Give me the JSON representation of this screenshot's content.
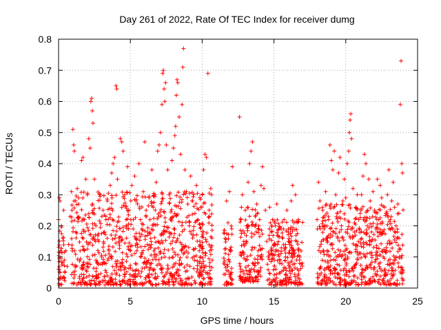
{
  "chart_data": {
    "type": "scatter",
    "title": "Day 261 of 2022, Rate Of TEC Index for receiver dumg",
    "xlabel": "GPS time / hours",
    "ylabel": "ROTI / TECUs",
    "xlim": [
      0,
      25
    ],
    "ylim": [
      0,
      0.8
    ],
    "xticks": [
      0,
      5,
      10,
      15,
      20,
      25
    ],
    "yticks": [
      0,
      0.1,
      0.2,
      0.3,
      0.4,
      0.5,
      0.6,
      0.7,
      0.8
    ],
    "xtick_labels": [
      "0",
      "5",
      "10",
      "15",
      "20",
      "25"
    ],
    "ytick_labels": [
      "0",
      "0.1",
      "0.2",
      "0.3",
      "0.4",
      "0.5",
      "0.6",
      "0.7",
      "0.8"
    ],
    "grid": true,
    "marker": "+",
    "color": "#ff0000",
    "series": [
      {
        "name": "ROTI",
        "points": [
          [
            0.0,
            0.22
          ],
          [
            0.05,
            0.29
          ],
          [
            0.1,
            0.28
          ],
          [
            0.1,
            0.05
          ],
          [
            0.15,
            0.12
          ],
          [
            0.2,
            0.2
          ],
          [
            0.25,
            0.03
          ],
          [
            0.3,
            0.16
          ],
          [
            0.35,
            0.25
          ],
          [
            0.4,
            0.09
          ],
          [
            0.5,
            0.12
          ],
          [
            0.6,
            0.07
          ],
          [
            0.7,
            0.14
          ],
          [
            0.8,
            0.23
          ],
          [
            0.9,
            0.31
          ],
          [
            1.0,
            0.51
          ],
          [
            1.05,
            0.46
          ],
          [
            1.1,
            0.44
          ],
          [
            1.2,
            0.18
          ],
          [
            1.3,
            0.32
          ],
          [
            1.4,
            0.27
          ],
          [
            1.5,
            0.12
          ],
          [
            1.6,
            0.41
          ],
          [
            1.7,
            0.42
          ],
          [
            1.8,
            0.22
          ],
          [
            1.9,
            0.35
          ],
          [
            2.0,
            0.3
          ],
          [
            2.1,
            0.48
          ],
          [
            2.2,
            0.45
          ],
          [
            2.25,
            0.6
          ],
          [
            2.3,
            0.61
          ],
          [
            2.35,
            0.57
          ],
          [
            2.4,
            0.53
          ],
          [
            2.5,
            0.35
          ],
          [
            2.6,
            0.2
          ],
          [
            2.7,
            0.08
          ],
          [
            2.8,
            0.15
          ],
          [
            2.9,
            0.3
          ],
          [
            3.0,
            0.1
          ],
          [
            3.1,
            0.25
          ],
          [
            3.2,
            0.18
          ],
          [
            3.3,
            0.22
          ],
          [
            3.4,
            0.28
          ],
          [
            3.5,
            0.12
          ],
          [
            3.6,
            0.33
          ],
          [
            3.7,
            0.37
          ],
          [
            3.8,
            0.4
          ],
          [
            3.9,
            0.42
          ],
          [
            4.0,
            0.65
          ],
          [
            4.05,
            0.64
          ],
          [
            4.1,
            0.35
          ],
          [
            4.2,
            0.15
          ],
          [
            4.3,
            0.48
          ],
          [
            4.4,
            0.47
          ],
          [
            4.5,
            0.44
          ],
          [
            4.6,
            0.3
          ],
          [
            4.7,
            0.2
          ],
          [
            4.8,
            0.39
          ],
          [
            4.9,
            0.25
          ],
          [
            5.0,
            0.12
          ],
          [
            5.1,
            0.33
          ],
          [
            5.2,
            0.22
          ],
          [
            5.3,
            0.36
          ],
          [
            5.4,
            0.28
          ],
          [
            5.5,
            0.14
          ],
          [
            5.6,
            0.4
          ],
          [
            5.7,
            0.22
          ],
          [
            5.8,
            0.19
          ],
          [
            5.9,
            0.31
          ],
          [
            6.0,
            0.47
          ],
          [
            6.1,
            0.25
          ],
          [
            6.2,
            0.18
          ],
          [
            6.3,
            0.29
          ],
          [
            6.4,
            0.13
          ],
          [
            6.5,
            0.38
          ],
          [
            6.6,
            0.26
          ],
          [
            6.7,
            0.1
          ],
          [
            6.8,
            0.34
          ],
          [
            6.9,
            0.44
          ],
          [
            7.0,
            0.46
          ],
          [
            7.1,
            0.5
          ],
          [
            7.2,
            0.59
          ],
          [
            7.25,
            0.69
          ],
          [
            7.3,
            0.7
          ],
          [
            7.35,
            0.64
          ],
          [
            7.4,
            0.6
          ],
          [
            7.45,
            0.66
          ],
          [
            7.5,
            0.46
          ],
          [
            7.6,
            0.38
          ],
          [
            7.7,
            0.3
          ],
          [
            7.8,
            0.22
          ],
          [
            7.9,
            0.41
          ],
          [
            8.0,
            0.45
          ],
          [
            8.1,
            0.49
          ],
          [
            8.15,
            0.52
          ],
          [
            8.2,
            0.62
          ],
          [
            8.25,
            0.67
          ],
          [
            8.3,
            0.66
          ],
          [
            8.4,
            0.55
          ],
          [
            8.5,
            0.43
          ],
          [
            8.6,
            0.59
          ],
          [
            8.65,
            0.71
          ],
          [
            8.7,
            0.77
          ],
          [
            8.8,
            0.38
          ],
          [
            8.9,
            0.31
          ],
          [
            9.0,
            0.27
          ],
          [
            9.1,
            0.2
          ],
          [
            9.2,
            0.36
          ],
          [
            9.3,
            0.28
          ],
          [
            9.4,
            0.17
          ],
          [
            9.5,
            0.24
          ],
          [
            9.6,
            0.33
          ],
          [
            9.7,
            0.22
          ],
          [
            9.8,
            0.12
          ],
          [
            9.9,
            0.26
          ],
          [
            10.0,
            0.3
          ],
          [
            10.1,
            0.38
          ],
          [
            10.2,
            0.43
          ],
          [
            10.3,
            0.42
          ],
          [
            10.4,
            0.69
          ],
          [
            10.5,
            0.23
          ],
          [
            10.6,
            0.32
          ],
          [
            10.7,
            0.09
          ],
          [
            11.5,
            0.08
          ],
          [
            11.6,
            0.16
          ],
          [
            11.7,
            0.28
          ],
          [
            11.8,
            0.21
          ],
          [
            11.9,
            0.31
          ],
          [
            12.0,
            0.12
          ],
          [
            12.1,
            0.39
          ],
          [
            12.6,
            0.55
          ],
          [
            12.7,
            0.22
          ],
          [
            12.8,
            0.3
          ],
          [
            12.9,
            0.15
          ],
          [
            13.0,
            0.25
          ],
          [
            13.1,
            0.2
          ],
          [
            13.2,
            0.34
          ],
          [
            13.3,
            0.4
          ],
          [
            13.4,
            0.44
          ],
          [
            13.5,
            0.47
          ],
          [
            13.6,
            0.31
          ],
          [
            13.7,
            0.2
          ],
          [
            13.8,
            0.27
          ],
          [
            13.9,
            0.12
          ],
          [
            14.0,
            0.22
          ],
          [
            14.1,
            0.33
          ],
          [
            14.2,
            0.39
          ],
          [
            14.3,
            0.32
          ],
          [
            14.4,
            0.25
          ],
          [
            14.5,
            0.15
          ],
          [
            14.6,
            0.1
          ],
          [
            14.7,
            0.26
          ],
          [
            14.8,
            0.18
          ],
          [
            14.9,
            0.22
          ],
          [
            15.0,
            0.14
          ],
          [
            15.1,
            0.2
          ],
          [
            15.2,
            0.27
          ],
          [
            15.3,
            0.12
          ],
          [
            15.4,
            0.08
          ],
          [
            15.5,
            0.19
          ],
          [
            15.6,
            0.16
          ],
          [
            15.7,
            0.22
          ],
          [
            15.8,
            0.1
          ],
          [
            15.9,
            0.25
          ],
          [
            16.0,
            0.18
          ],
          [
            16.1,
            0.12
          ],
          [
            16.2,
            0.28
          ],
          [
            16.3,
            0.33
          ],
          [
            16.4,
            0.21
          ],
          [
            16.5,
            0.3
          ],
          [
            16.6,
            0.15
          ],
          [
            16.7,
            0.22
          ],
          [
            16.8,
            0.1
          ],
          [
            18.0,
            0.22
          ],
          [
            18.1,
            0.34
          ],
          [
            18.2,
            0.28
          ],
          [
            18.3,
            0.15
          ],
          [
            18.4,
            0.25
          ],
          [
            18.5,
            0.19
          ],
          [
            18.6,
            0.31
          ],
          [
            18.7,
            0.12
          ],
          [
            18.8,
            0.22
          ],
          [
            18.9,
            0.46
          ],
          [
            19.0,
            0.41
          ],
          [
            19.1,
            0.38
          ],
          [
            19.2,
            0.44
          ],
          [
            19.3,
            0.3
          ],
          [
            19.4,
            0.24
          ],
          [
            19.5,
            0.37
          ],
          [
            19.6,
            0.42
          ],
          [
            19.7,
            0.2
          ],
          [
            19.8,
            0.28
          ],
          [
            19.9,
            0.35
          ],
          [
            20.0,
            0.29
          ],
          [
            20.1,
            0.4
          ],
          [
            20.2,
            0.44
          ],
          [
            20.25,
            0.5
          ],
          [
            20.3,
            0.54
          ],
          [
            20.35,
            0.56
          ],
          [
            20.4,
            0.48
          ],
          [
            20.5,
            0.32
          ],
          [
            20.6,
            0.18
          ],
          [
            20.7,
            0.26
          ],
          [
            20.8,
            0.3
          ],
          [
            20.9,
            0.22
          ],
          [
            21.0,
            0.24
          ],
          [
            21.1,
            0.3
          ],
          [
            21.2,
            0.36
          ],
          [
            21.3,
            0.43
          ],
          [
            21.4,
            0.4
          ],
          [
            21.5,
            0.2
          ],
          [
            21.6,
            0.35
          ],
          [
            21.7,
            0.28
          ],
          [
            21.8,
            0.15
          ],
          [
            21.9,
            0.31
          ],
          [
            22.0,
            0.25
          ],
          [
            22.1,
            0.19
          ],
          [
            22.2,
            0.35
          ],
          [
            22.3,
            0.22
          ],
          [
            22.4,
            0.33
          ],
          [
            22.5,
            0.29
          ],
          [
            22.6,
            0.18
          ],
          [
            22.7,
            0.26
          ],
          [
            22.8,
            0.24
          ],
          [
            22.9,
            0.3
          ],
          [
            23.0,
            0.38
          ],
          [
            23.1,
            0.22
          ],
          [
            23.2,
            0.28
          ],
          [
            23.3,
            0.34
          ],
          [
            23.4,
            0.26
          ],
          [
            23.5,
            0.2
          ],
          [
            23.6,
            0.18
          ],
          [
            23.7,
            0.24
          ],
          [
            23.8,
            0.59
          ],
          [
            23.85,
            0.73
          ],
          [
            23.9,
            0.4
          ],
          [
            23.95,
            0.37
          ]
        ],
        "dense_segments": [
          [
            0.0,
            0.45,
            0.01,
            0.22
          ],
          [
            0.9,
            10.7,
            0.01,
            0.31
          ],
          [
            11.5,
            12.1,
            0.01,
            0.22
          ],
          [
            12.6,
            14.2,
            0.02,
            0.26
          ],
          [
            14.5,
            17.0,
            0.01,
            0.22
          ],
          [
            18.0,
            24.0,
            0.01,
            0.27
          ]
        ],
        "dense_points_per_hour": 90
      }
    ]
  }
}
